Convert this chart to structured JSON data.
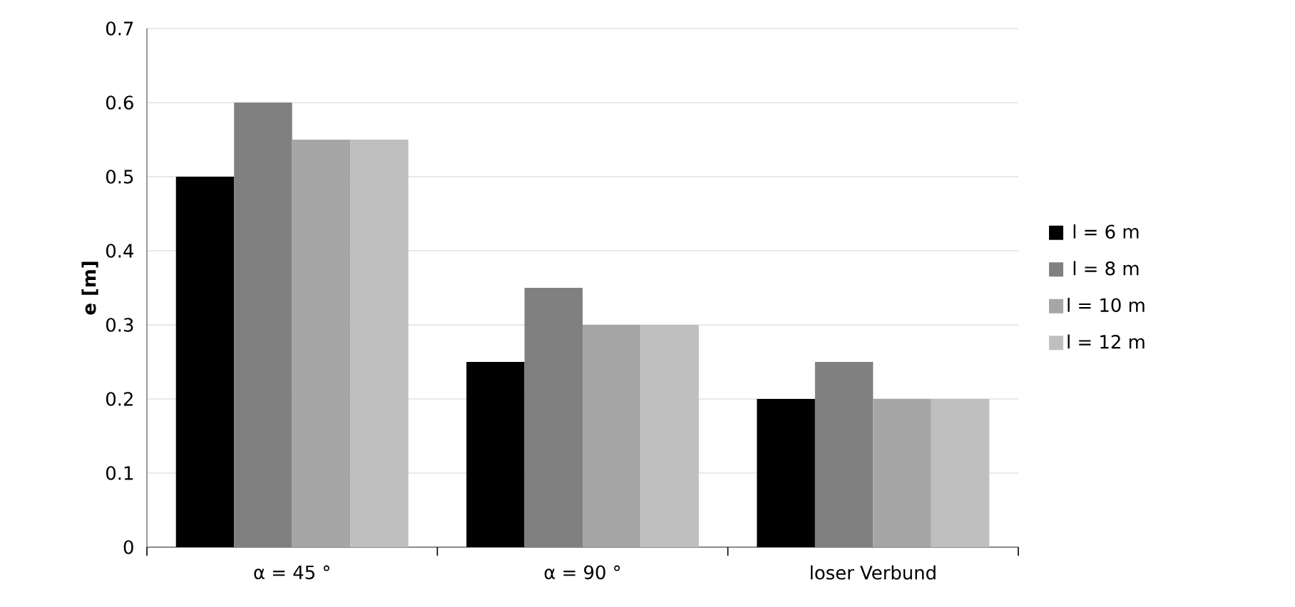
{
  "chart_data": {
    "type": "bar",
    "ylabel": "e [m]",
    "categories": [
      "α = 45 °",
      "α = 90 °",
      "loser Verbund"
    ],
    "series": [
      {
        "name": "l = 6 m",
        "color": "#000000",
        "values": [
          0.5,
          0.25,
          0.2
        ]
      },
      {
        "name": "l = 8 m",
        "color": "#808080",
        "values": [
          0.6,
          0.35,
          0.25
        ]
      },
      {
        "name": "l = 10 m",
        "color": "#a6a6a6",
        "values": [
          0.55,
          0.3,
          0.2
        ]
      },
      {
        "name": "l = 12 m",
        "color": "#bfbfbf",
        "values": [
          0.55,
          0.3,
          0.2
        ]
      }
    ],
    "ylim": [
      0,
      0.7
    ],
    "yticks": [
      0,
      0.1,
      0.2,
      0.3,
      0.4,
      0.5,
      0.6,
      0.7
    ],
    "grid": "y",
    "legend": "right"
  }
}
